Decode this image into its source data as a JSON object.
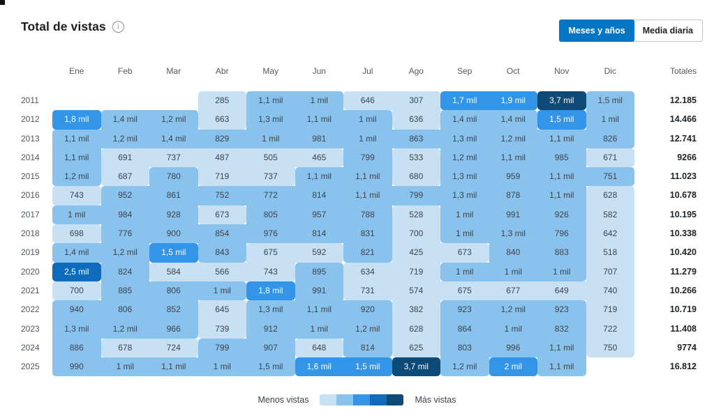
{
  "header": {
    "title": "Total de vistas",
    "info_icon": "i"
  },
  "toggle": {
    "options": [
      {
        "label": "Meses y años",
        "active": true
      },
      {
        "label": "Media diaria",
        "active": false
      }
    ]
  },
  "colors": {
    "accent": "#0675c4",
    "cell_text_dark": "#3c434a",
    "cell_text_light": "#ffffff",
    "levels": {
      "1": "#c7e0f4",
      "2": "#8ac2ee",
      "3": "#3295e8",
      "4": "#0f6cbd",
      "5": "#0d4a78"
    }
  },
  "chart_data": {
    "type": "heatmap",
    "title": "Total de vistas",
    "columns": [
      "Ene",
      "Feb",
      "Mar",
      "Abr",
      "May",
      "Jun",
      "Jul",
      "Ago",
      "Sep",
      "Oct",
      "Nov",
      "Dic"
    ],
    "totals_label": "Totales",
    "rows": [
      {
        "year": "2011",
        "values": [
          null,
          null,
          null,
          "285",
          "1,1 mil",
          "1 mil",
          "646",
          "307",
          "1,7 mil",
          "1,9 mil",
          "3,7 mil",
          "1,5 mil"
        ],
        "levels": [
          0,
          0,
          0,
          1,
          2,
          2,
          1,
          1,
          3,
          3,
          5,
          2
        ],
        "total": "12.185"
      },
      {
        "year": "2012",
        "values": [
          "1,8 mil",
          "1,4 mil",
          "1,2 mil",
          "663",
          "1,3 mil",
          "1,1 mil",
          "1 mil",
          "636",
          "1,4 mil",
          "1,4 mil",
          "1,5 mil",
          "1 mil"
        ],
        "levels": [
          3,
          2,
          2,
          1,
          2,
          2,
          2,
          1,
          2,
          2,
          3,
          2
        ],
        "total": "14.466"
      },
      {
        "year": "2013",
        "values": [
          "1,1 mil",
          "1,2 mil",
          "1,4 mil",
          "829",
          "1 mil",
          "981",
          "1 mil",
          "863",
          "1,3 mil",
          "1,2 mil",
          "1,1 mil",
          "826"
        ],
        "levels": [
          2,
          2,
          2,
          2,
          2,
          2,
          2,
          2,
          2,
          2,
          2,
          2
        ],
        "total": "12.741"
      },
      {
        "year": "2014",
        "values": [
          "1,1 mil",
          "691",
          "737",
          "487",
          "505",
          "465",
          "799",
          "533",
          "1,2 mil",
          "1,1 mil",
          "985",
          "671"
        ],
        "levels": [
          2,
          1,
          1,
          1,
          1,
          1,
          2,
          1,
          2,
          2,
          2,
          1
        ],
        "total": "9266"
      },
      {
        "year": "2015",
        "values": [
          "1,2 mil",
          "687",
          "780",
          "719",
          "737",
          "1,1 mil",
          "1,1 mil",
          "680",
          "1,3 mil",
          "959",
          "1,1 mil",
          "751"
        ],
        "levels": [
          2,
          1,
          2,
          1,
          1,
          2,
          2,
          1,
          2,
          2,
          2,
          2
        ],
        "total": "11.023"
      },
      {
        "year": "2016",
        "values": [
          "743",
          "952",
          "861",
          "752",
          "772",
          "814",
          "1,1 mil",
          "799",
          "1,3 mil",
          "878",
          "1,1 mil",
          "628"
        ],
        "levels": [
          1,
          2,
          2,
          2,
          2,
          2,
          2,
          2,
          2,
          2,
          2,
          1
        ],
        "total": "10.678"
      },
      {
        "year": "2017",
        "values": [
          "1 mil",
          "984",
          "928",
          "673",
          "805",
          "957",
          "788",
          "528",
          "1 mil",
          "991",
          "926",
          "582"
        ],
        "levels": [
          2,
          2,
          2,
          1,
          2,
          2,
          2,
          1,
          2,
          2,
          2,
          1
        ],
        "total": "10.195"
      },
      {
        "year": "2018",
        "values": [
          "698",
          "776",
          "900",
          "854",
          "976",
          "814",
          "831",
          "700",
          "1 mil",
          "1,3 mil",
          "796",
          "642"
        ],
        "levels": [
          1,
          2,
          2,
          2,
          2,
          2,
          2,
          1,
          2,
          2,
          2,
          1
        ],
        "total": "10.338"
      },
      {
        "year": "2019",
        "values": [
          "1,4 mil",
          "1,2 mil",
          "1,5 mil",
          "843",
          "675",
          "592",
          "821",
          "425",
          "673",
          "840",
          "883",
          "518"
        ],
        "levels": [
          2,
          2,
          3,
          2,
          1,
          1,
          2,
          1,
          1,
          2,
          2,
          1
        ],
        "total": "10.420"
      },
      {
        "year": "2020",
        "values": [
          "2,5 mil",
          "824",
          "584",
          "566",
          "743",
          "895",
          "634",
          "719",
          "1 mil",
          "1 mil",
          "1 mil",
          "707"
        ],
        "levels": [
          4,
          2,
          1,
          1,
          1,
          2,
          1,
          1,
          2,
          2,
          2,
          1
        ],
        "total": "11.279"
      },
      {
        "year": "2021",
        "values": [
          "700",
          "885",
          "806",
          "1 mil",
          "1,8 mil",
          "991",
          "731",
          "574",
          "675",
          "677",
          "649",
          "740"
        ],
        "levels": [
          1,
          2,
          2,
          2,
          3,
          2,
          1,
          1,
          1,
          1,
          1,
          1
        ],
        "total": "10.266"
      },
      {
        "year": "2022",
        "values": [
          "940",
          "806",
          "852",
          "645",
          "1,3 mil",
          "1,1 mil",
          "920",
          "382",
          "923",
          "1,2 mil",
          "923",
          "719"
        ],
        "levels": [
          2,
          2,
          2,
          1,
          2,
          2,
          2,
          1,
          2,
          2,
          2,
          1
        ],
        "total": "10.719"
      },
      {
        "year": "2023",
        "values": [
          "1,3 mil",
          "1,2 mil",
          "966",
          "739",
          "912",
          "1 mil",
          "1,2 mil",
          "628",
          "864",
          "1 mil",
          "832",
          "722"
        ],
        "levels": [
          2,
          2,
          2,
          1,
          2,
          2,
          2,
          1,
          2,
          2,
          2,
          1
        ],
        "total": "11.408"
      },
      {
        "year": "2024",
        "values": [
          "886",
          "678",
          "724",
          "799",
          "907",
          "648",
          "814",
          "625",
          "803",
          "996",
          "1,1 mil",
          "750"
        ],
        "levels": [
          2,
          1,
          1,
          2,
          2,
          1,
          2,
          1,
          2,
          2,
          2,
          1
        ],
        "total": "9774"
      },
      {
        "year": "2025",
        "values": [
          "990",
          "1 mil",
          "1,1 mil",
          "1 mil",
          "1,5 mil",
          "1,6 mil",
          "1,5 mil",
          "3,7 mil",
          "1,2 mil",
          "2 mil",
          "1,1 mil",
          null
        ],
        "levels": [
          2,
          2,
          2,
          2,
          2,
          3,
          3,
          5,
          2,
          3,
          2,
          0
        ],
        "total": "16.812"
      }
    ],
    "legend": {
      "min_label": "Menos vistas",
      "max_label": "Más vistas",
      "colors": [
        "#c7e0f4",
        "#8ac2ee",
        "#3295e8",
        "#0f6cbd",
        "#0d4a78"
      ]
    }
  }
}
